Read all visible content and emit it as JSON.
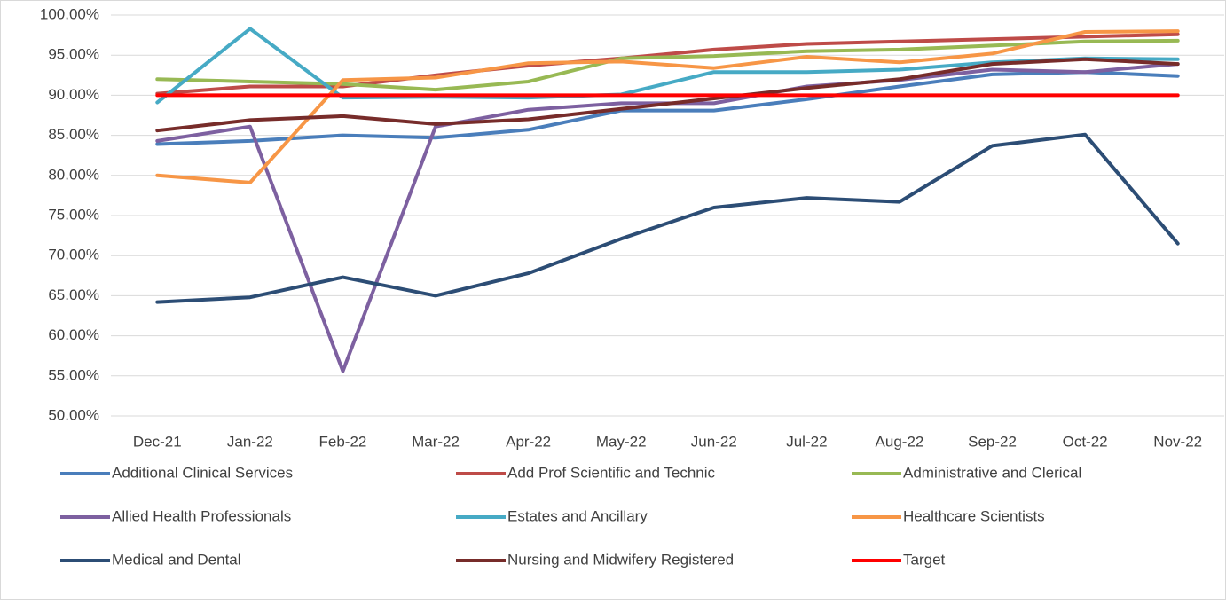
{
  "chart_data": {
    "type": "line",
    "categories": [
      "Dec-21",
      "Jan-22",
      "Feb-22",
      "Mar-22",
      "Apr-22",
      "May-22",
      "Jun-22",
      "Jul-22",
      "Aug-22",
      "Sep-22",
      "Oct-22",
      "Nov-22"
    ],
    "ylim": [
      50,
      100
    ],
    "yticks": [
      {
        "value": 50,
        "label": "50.00%"
      },
      {
        "value": 55,
        "label": "55.00%"
      },
      {
        "value": 60,
        "label": "60.00%"
      },
      {
        "value": 65,
        "label": "65.00%"
      },
      {
        "value": 70,
        "label": "70.00%"
      },
      {
        "value": 75,
        "label": "75.00%"
      },
      {
        "value": 80,
        "label": "80.00%"
      },
      {
        "value": 85,
        "label": "85.00%"
      },
      {
        "value": 90,
        "label": "90.00%"
      },
      {
        "value": 95,
        "label": "95.00%"
      },
      {
        "value": 100,
        "label": "100.00%"
      }
    ],
    "grid": true,
    "legend": "bottom",
    "series": [
      {
        "name": "Additional Clinical Services",
        "color": "#4a7ebb",
        "values": [
          83.9,
          84.3,
          85.0,
          84.7,
          85.7,
          88.1,
          88.1,
          89.5,
          91.1,
          92.6,
          92.9,
          92.4
        ]
      },
      {
        "name": "Add Prof Scientific and Technic",
        "color": "#be4b48",
        "values": [
          90.2,
          91.1,
          91.1,
          92.5,
          93.7,
          94.6,
          95.7,
          96.4,
          96.7,
          97.0,
          97.3,
          97.6
        ]
      },
      {
        "name": "Administrative and Clerical",
        "color": "#98b954",
        "values": [
          92.0,
          91.7,
          91.4,
          90.7,
          91.7,
          94.6,
          94.9,
          95.5,
          95.7,
          96.2,
          96.7,
          96.8
        ]
      },
      {
        "name": "Allied Health Professionals",
        "color": "#7d60a0",
        "values": [
          84.3,
          86.1,
          55.6,
          86.1,
          88.2,
          89.0,
          89.0,
          91.1,
          91.9,
          93.2,
          92.9,
          93.9
        ]
      },
      {
        "name": "Estates and Ancillary",
        "color": "#46aac5",
        "values": [
          89.1,
          98.3,
          89.7,
          89.8,
          89.7,
          90.1,
          92.9,
          92.9,
          93.2,
          94.1,
          94.6,
          94.5
        ]
      },
      {
        "name": "Healthcare Scientists",
        "color": "#f79646",
        "values": [
          80.0,
          79.1,
          91.9,
          92.2,
          94.0,
          94.2,
          93.4,
          94.8,
          94.1,
          95.2,
          97.9,
          98.0
        ]
      },
      {
        "name": "Medical and Dental",
        "color": "#2c4d75",
        "values": [
          64.2,
          64.8,
          67.3,
          65.0,
          67.8,
          72.1,
          76.0,
          77.2,
          76.7,
          83.7,
          85.1,
          71.5
        ]
      },
      {
        "name": "Nursing and Midwifery Registered",
        "color": "#772c2a",
        "values": [
          85.6,
          86.9,
          87.4,
          86.4,
          87.0,
          88.3,
          89.6,
          90.9,
          92.0,
          93.9,
          94.5,
          93.9
        ]
      },
      {
        "name": "Target",
        "color": "#ff0000",
        "values": [
          90,
          90,
          90,
          90,
          90,
          90,
          90,
          90,
          90,
          90,
          90,
          90
        ]
      }
    ]
  }
}
